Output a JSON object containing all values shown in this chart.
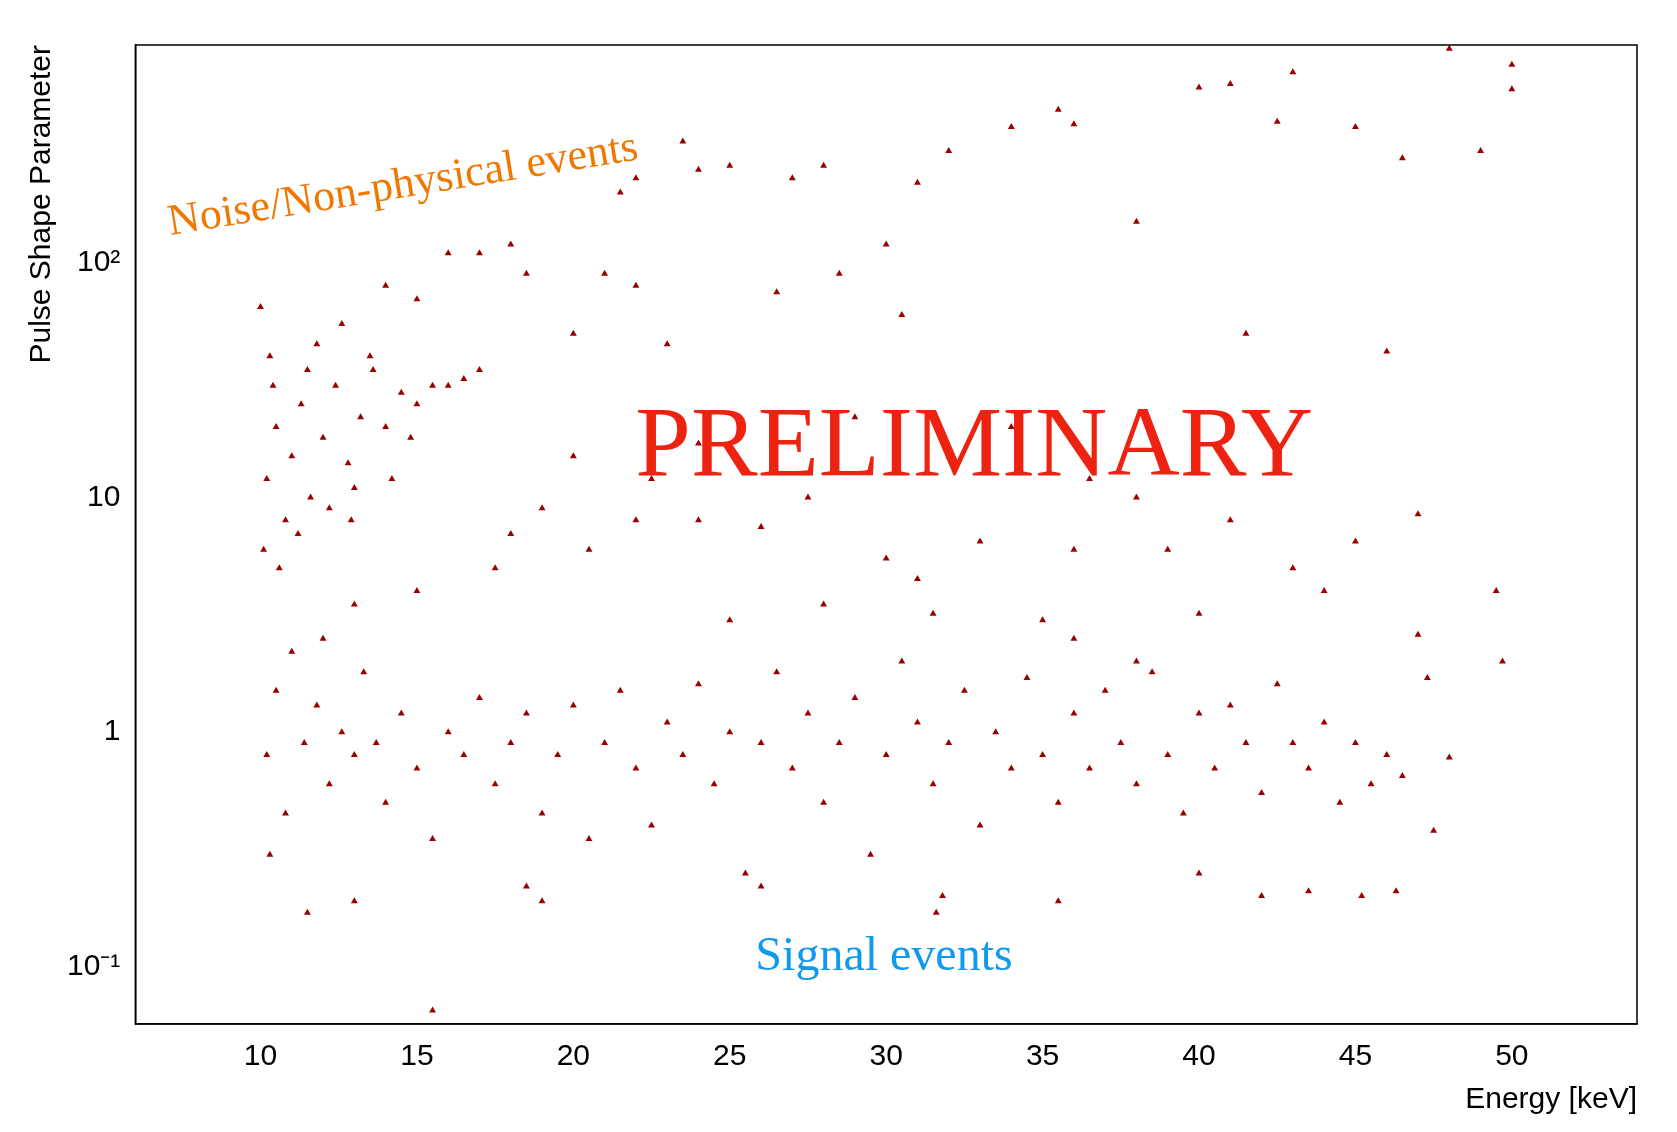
{
  "chart_data": {
    "type": "scatter",
    "xlabel": "Energy [keV]",
    "ylabel": "Pulse Shape Parameter",
    "annotations": [
      "Noise/Non-physical events",
      "PRELIMINARY",
      "Signal events"
    ],
    "color": "#990000",
    "marker": "triangle",
    "log": "y",
    "xlim": [
      6,
      54
    ],
    "ylim": [
      0.057,
      850
    ],
    "xticks": [
      10,
      15,
      20,
      25,
      30,
      35,
      40,
      45,
      50
    ],
    "yticks": [
      {
        "value": 0.1,
        "label": "10⁻¹"
      },
      1,
      10,
      {
        "value": 100,
        "label": "10²"
      }
    ],
    "x": [
      10.2,
      10.5,
      10.8,
      11,
      11.3,
      11.6,
      12,
      12.4,
      12.8,
      13.2,
      13.6,
      14,
      14.5,
      15,
      15.5,
      16,
      10.1,
      10.3,
      11.8,
      12.6,
      13.5,
      10.6,
      11.2,
      12.2,
      13,
      14.2,
      10.4,
      11.5,
      12.9,
      14.8,
      16.5,
      17,
      10,
      14,
      15,
      16,
      17,
      18,
      18.5,
      20,
      21,
      22,
      23,
      21.5,
      22,
      24,
      25,
      27,
      28,
      28.5,
      30,
      31,
      32,
      35.5,
      36,
      38,
      40,
      41,
      43,
      45,
      46.5,
      48,
      49,
      50,
      50,
      26.5,
      30.5,
      41.5,
      46,
      23.5,
      34,
      42.5,
      19,
      20.5,
      22,
      24,
      26,
      27.5,
      30,
      31,
      33,
      36,
      38,
      39,
      47,
      17.5,
      18,
      25,
      28,
      31.5,
      35,
      40,
      44,
      49.5,
      49.7,
      47.3,
      47,
      29,
      32,
      34,
      36.5,
      41,
      43,
      45,
      20,
      22.5,
      24,
      15,
      13,
      12,
      10.2,
      10.5,
      10.8,
      11,
      11.4,
      11.8,
      12.2,
      12.6,
      13,
      13.3,
      13.7,
      14,
      14.5,
      15,
      15.5,
      16,
      16.5,
      17,
      17.5,
      18,
      18.5,
      19,
      19.5,
      20,
      20.5,
      21,
      21.5,
      22,
      22.5,
      23,
      23.5,
      24,
      24.5,
      25,
      25.5,
      26,
      26.5,
      27,
      27.5,
      28,
      28.5,
      29,
      29.5,
      30,
      30.5,
      31,
      31.5,
      32,
      32.5,
      33,
      33.5,
      34,
      34.5,
      35,
      35.5,
      36,
      36.5,
      37,
      37.5,
      38,
      38.5,
      39,
      39.5,
      40,
      40.5,
      41,
      41.5,
      42,
      42.5,
      43,
      43.5,
      44,
      44.5,
      45,
      45.5,
      46,
      46.5,
      47.5,
      48,
      10.3,
      11.5,
      13,
      15.5,
      18.5,
      19,
      26,
      31.8,
      31.6,
      35.5,
      42,
      43.5,
      45.2,
      46.3,
      36,
      38,
      40
    ],
    "values": [
      12,
      20,
      8,
      15,
      25,
      10,
      18,
      30,
      14,
      22,
      35,
      20,
      28,
      25,
      30,
      30,
      6,
      40,
      45,
      55,
      40,
      5,
      7,
      9,
      11,
      12,
      30,
      35,
      8,
      18,
      32,
      35,
      65,
      80,
      70,
      110,
      110,
      120,
      90,
      50,
      90,
      80,
      45,
      200,
      230,
      250,
      260,
      230,
      260,
      90,
      120,
      220,
      300,
      450,
      390,
      150,
      560,
      580,
      650,
      380,
      280,
      820,
      300,
      700,
      550,
      75,
      60,
      50,
      42,
      330,
      380,
      400,
      9,
      6,
      8,
      8,
      7.5,
      10,
      5.5,
      4.5,
      6.5,
      6,
      10,
      6,
      8.5,
      5,
      7,
      3,
      3.5,
      3.2,
      3,
      3.2,
      4,
      4,
      2,
      1.7,
      2.6,
      22,
      15,
      20,
      12,
      8,
      5,
      6.5,
      15,
      12,
      17,
      4,
      3.5,
      2.5,
      0.8,
      1.5,
      0.45,
      2.2,
      0.9,
      1.3,
      0.6,
      1,
      0.8,
      1.8,
      0.9,
      0.5,
      1.2,
      0.7,
      0.35,
      1,
      0.8,
      1.4,
      0.6,
      0.9,
      1.2,
      0.45,
      0.8,
      1.3,
      0.35,
      0.9,
      1.5,
      0.7,
      0.4,
      1.1,
      0.8,
      1.6,
      0.6,
      1,
      0.25,
      0.9,
      1.8,
      0.7,
      1.2,
      0.5,
      0.9,
      1.4,
      0.3,
      0.8,
      2,
      1.1,
      0.6,
      0.9,
      1.5,
      0.4,
      1,
      0.7,
      1.7,
      0.8,
      0.5,
      1.2,
      0.7,
      1.5,
      0.9,
      0.6,
      1.8,
      0.8,
      0.45,
      1.2,
      0.7,
      1.3,
      0.9,
      0.55,
      1.6,
      0.9,
      0.7,
      1.1,
      0.5,
      0.9,
      0.6,
      0.8,
      0.65,
      0.38,
      0.78,
      0.3,
      0.17,
      0.19,
      0.065,
      0.22,
      0.19,
      0.22,
      0.2,
      0.17,
      0.19,
      0.2,
      0.21,
      0.2,
      0.21,
      2.5,
      2,
      0.25
    ]
  }
}
